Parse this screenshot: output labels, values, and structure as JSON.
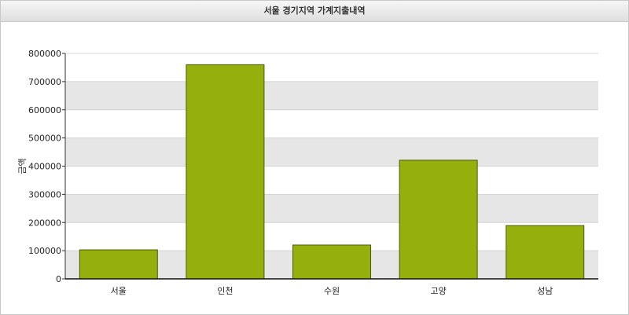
{
  "window": {
    "title": "서울 경기지역 가계지출내역"
  },
  "chart_data": {
    "type": "bar",
    "title": "서울 경기지역 가계지출내역",
    "xlabel": "",
    "ylabel": "금액",
    "categories": [
      "서울",
      "인천",
      "수원",
      "고양",
      "성남"
    ],
    "values": [
      103000,
      760000,
      120000,
      421000,
      189000
    ],
    "ylim": [
      0,
      800000
    ],
    "yticks": [
      0,
      100000,
      200000,
      300000,
      400000,
      500000,
      600000,
      700000,
      800000
    ],
    "grid": true,
    "legend": "none",
    "colors": {
      "bar": "#95b00c",
      "bar_stroke": "#4a5a06",
      "band": "#e6e6e6"
    }
  }
}
